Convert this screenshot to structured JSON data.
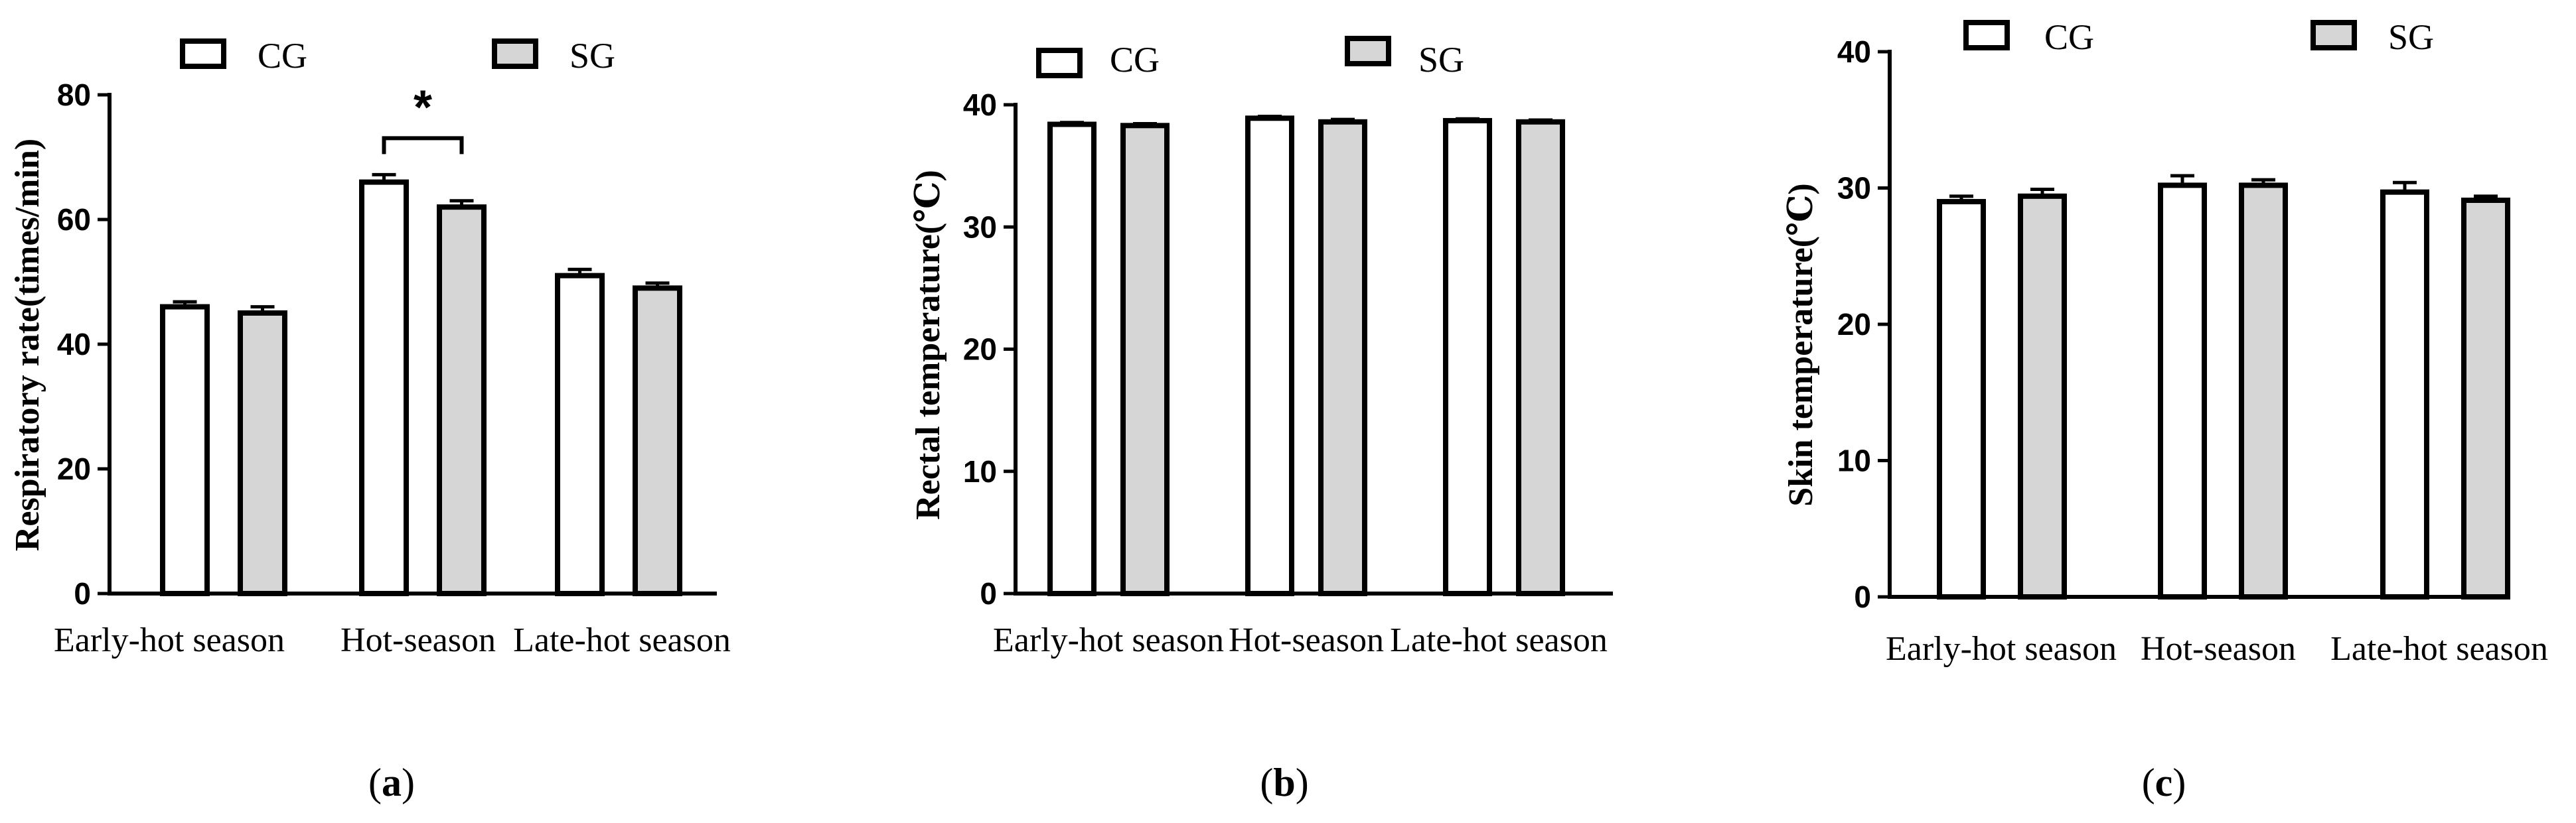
{
  "chart_data": [
    {
      "type": "bar",
      "panel_label": "(a)",
      "ylabel": "Respiratory rate(times/min)",
      "xlabel": "",
      "categories": [
        "Early-hot season",
        "Hot-season",
        "Late-hot season"
      ],
      "ylim": [
        0,
        80
      ],
      "yticks": [
        0,
        20,
        40,
        60,
        80
      ],
      "legend": [
        "CG",
        "SG"
      ],
      "legend_position": "top",
      "grid": false,
      "series": [
        {
          "name": "CG",
          "values": [
            46,
            66,
            51
          ],
          "errors": [
            0.8,
            1.2,
            1.0
          ],
          "color": "#ffffff"
        },
        {
          "name": "SG",
          "values": [
            45,
            62,
            49
          ],
          "errors": [
            1.0,
            1.0,
            0.8
          ],
          "color": "#d6d6d6"
        }
      ],
      "significance": [
        {
          "category": "Hot-season",
          "label": "*"
        }
      ]
    },
    {
      "type": "bar",
      "panel_label": "(b)",
      "ylabel": "Rectal temperature(℃)",
      "xlabel": "",
      "categories": [
        "Early-hot season",
        "Hot-season",
        "Late-hot season"
      ],
      "ylim": [
        0,
        40
      ],
      "yticks": [
        0,
        10,
        20,
        30,
        40
      ],
      "legend": [
        "CG",
        "SG"
      ],
      "legend_position": "top",
      "grid": false,
      "series": [
        {
          "name": "CG",
          "values": [
            38.4,
            38.9,
            38.7
          ],
          "errors": [
            0.15,
            0.15,
            0.15
          ],
          "color": "#ffffff"
        },
        {
          "name": "SG",
          "values": [
            38.3,
            38.6,
            38.6
          ],
          "errors": [
            0.15,
            0.2,
            0.15
          ],
          "color": "#d6d6d6"
        }
      ],
      "significance": []
    },
    {
      "type": "bar",
      "panel_label": "(c)",
      "ylabel": "Skin temperature(℃)",
      "xlabel": "",
      "categories": [
        "Early-hot season",
        "Hot-season",
        "Late-hot season"
      ],
      "ylim": [
        0,
        40
      ],
      "yticks": [
        0,
        10,
        20,
        30,
        40
      ],
      "legend": [
        "CG",
        "SG"
      ],
      "legend_position": "top",
      "grid": false,
      "series": [
        {
          "name": "CG",
          "values": [
            29.0,
            30.2,
            29.7
          ],
          "errors": [
            0.4,
            0.7,
            0.7
          ],
          "color": "#ffffff"
        },
        {
          "name": "SG",
          "values": [
            29.4,
            30.2,
            29.1
          ],
          "errors": [
            0.5,
            0.4,
            0.3
          ],
          "color": "#d6d6d6"
        }
      ],
      "significance": []
    }
  ]
}
